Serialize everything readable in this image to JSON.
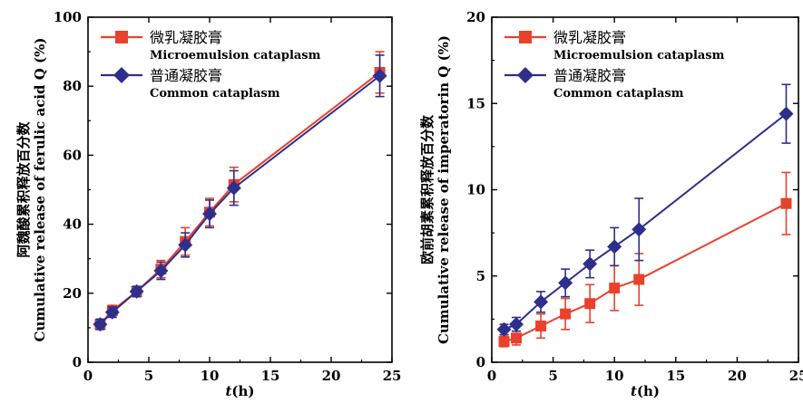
{
  "chart_data": [
    {
      "type": "line",
      "xlabel": "t(h)",
      "ylabel_cn": "阿魏酸累积释放百分数",
      "ylabel": "Cumulative release of ferulic acid Q (%)",
      "xlim": [
        0,
        25
      ],
      "ylim": [
        0,
        100
      ],
      "xticks": [
        0,
        5,
        10,
        15,
        20,
        25
      ],
      "yticks": [
        0,
        20,
        40,
        60,
        80,
        100
      ],
      "grid": false,
      "legend_position": "top-left",
      "series": [
        {
          "name_cn": "微乳凝胶膏",
          "name": "Microemulsion cataplasm",
          "color": "#e8412c",
          "marker": "square",
          "x": [
            1,
            2,
            4,
            6,
            8,
            10,
            12,
            24
          ],
          "y": [
            11,
            15,
            20.5,
            27,
            35,
            43.5,
            51.5,
            84
          ],
          "err": [
            1.5,
            1.5,
            1.5,
            2.5,
            4,
            4,
            5,
            6
          ]
        },
        {
          "name_cn": "普通凝胶膏",
          "name": "Common cataplasm",
          "color": "#2e2e8c",
          "marker": "diamond",
          "x": [
            1,
            2,
            4,
            6,
            8,
            10,
            12,
            24
          ],
          "y": [
            11,
            14.5,
            20.5,
            26.5,
            34,
            43,
            50.5,
            83
          ],
          "err": [
            1.5,
            1.5,
            1.5,
            2.5,
            3.5,
            4,
            5,
            6
          ]
        }
      ]
    },
    {
      "type": "line",
      "xlabel": "t(h)",
      "ylabel_cn": "欧前胡素累积释放百分数",
      "ylabel": "Cumulative release of imperatorin Q (%)",
      "xlim": [
        0,
        25
      ],
      "ylim": [
        0,
        20
      ],
      "xticks": [
        0,
        5,
        10,
        15,
        20,
        25
      ],
      "yticks": [
        0,
        5,
        10,
        15,
        20
      ],
      "grid": false,
      "legend_position": "top-left",
      "series": [
        {
          "name_cn": "微乳凝胶膏",
          "name": "Microemulsion cataplasm",
          "color": "#e8412c",
          "marker": "square",
          "x": [
            1,
            2,
            4,
            6,
            8,
            10,
            12,
            24
          ],
          "y": [
            1.2,
            1.4,
            2.1,
            2.8,
            3.4,
            4.3,
            4.8,
            9.2
          ],
          "err": [
            0.3,
            0.4,
            0.7,
            0.9,
            1.1,
            1.3,
            1.5,
            1.8
          ]
        },
        {
          "name_cn": "普通凝胶膏",
          "name": "Common cataplasm",
          "color": "#2e2e8c",
          "marker": "diamond",
          "x": [
            1,
            2,
            4,
            6,
            8,
            10,
            12,
            24
          ],
          "y": [
            1.9,
            2.2,
            3.5,
            4.6,
            5.7,
            6.7,
            7.7,
            14.4
          ],
          "err": [
            0.3,
            0.4,
            0.6,
            0.8,
            0.8,
            1.1,
            1.8,
            1.7
          ]
        }
      ]
    }
  ]
}
